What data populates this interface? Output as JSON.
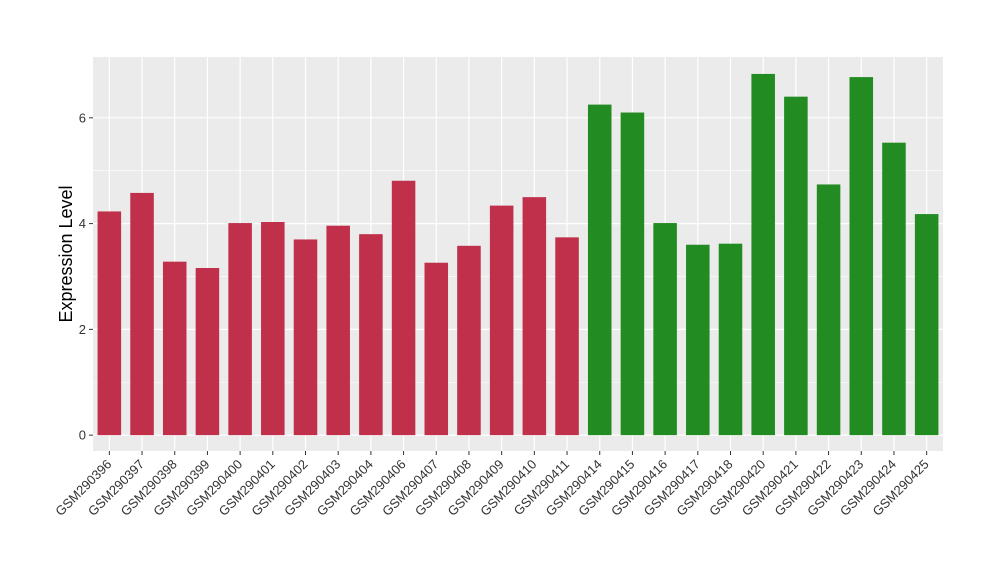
{
  "chart_data": {
    "type": "bar",
    "ylabel": "Expression Level",
    "xlabel": "",
    "ylim": [
      -0.3,
      7.15
    ],
    "yticks": [
      0,
      2,
      4,
      6
    ],
    "grid": true,
    "categories": [
      "GSM290396",
      "GSM290397",
      "GSM290398",
      "GSM290399",
      "GSM290400",
      "GSM290401",
      "GSM290402",
      "GSM290403",
      "GSM290404",
      "GSM290406",
      "GSM290407",
      "GSM290408",
      "GSM290409",
      "GSM290410",
      "GSM290411",
      "GSM290414",
      "GSM290415",
      "GSM290416",
      "GSM290417",
      "GSM290418",
      "GSM290420",
      "GSM290421",
      "GSM290422",
      "GSM290423",
      "GSM290424",
      "GSM290425"
    ],
    "values": [
      4.23,
      4.58,
      3.28,
      3.16,
      4.01,
      4.03,
      3.7,
      3.96,
      3.8,
      4.81,
      3.26,
      3.58,
      4.34,
      4.5,
      3.74,
      6.25,
      6.1,
      4.01,
      3.6,
      3.62,
      6.83,
      6.4,
      4.74,
      6.77,
      5.53,
      4.18
    ],
    "group_sizes": [
      15,
      11
    ],
    "colors": [
      "#c0304a",
      "#228b22"
    ],
    "panel_background": "#ebebeb",
    "grid_color": "#ffffff"
  }
}
